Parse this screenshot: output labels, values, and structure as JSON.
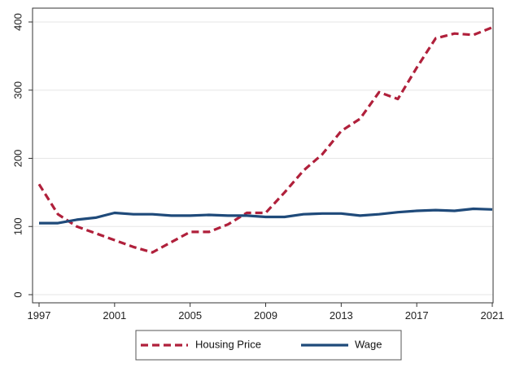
{
  "chart_data": {
    "type": "line",
    "title": "",
    "xlabel": "",
    "ylabel": "",
    "xlim": [
      1997,
      2021
    ],
    "ylim": [
      0,
      400
    ],
    "xticks": [
      "1997",
      "2001",
      "2005",
      "2009",
      "2013",
      "2017",
      "2021"
    ],
    "yticks": [
      "0",
      "100",
      "200",
      "300",
      "400"
    ],
    "grid": "horizontal",
    "legend_position": "bottom",
    "series": [
      {
        "name": "Housing Price",
        "style": "dashed",
        "color": "#b0203b",
        "x": [
          1997,
          1998,
          1999,
          2000,
          2001,
          2002,
          2003,
          2004,
          2005,
          2006,
          2007,
          2008,
          2009,
          2010,
          2011,
          2012,
          2013,
          2014,
          2015,
          2016,
          2017,
          2018,
          2019,
          2020,
          2021
        ],
        "values": [
          162,
          118,
          100,
          90,
          80,
          70,
          62,
          77,
          92,
          92,
          103,
          120,
          120,
          150,
          182,
          206,
          240,
          258,
          297,
          287,
          333,
          376,
          383,
          381,
          392
        ]
      },
      {
        "name": "Wage",
        "style": "solid",
        "color": "#1f4a7a",
        "x": [
          1997,
          1998,
          1999,
          2000,
          2001,
          2002,
          2003,
          2004,
          2005,
          2006,
          2007,
          2008,
          2009,
          2010,
          2011,
          2012,
          2013,
          2014,
          2015,
          2016,
          2017,
          2018,
          2019,
          2020,
          2021
        ],
        "values": [
          105,
          105,
          110,
          113,
          120,
          118,
          118,
          116,
          116,
          117,
          116,
          116,
          114,
          114,
          118,
          119,
          119,
          116,
          118,
          121,
          123,
          124,
          123,
          126,
          125
        ]
      }
    ]
  }
}
